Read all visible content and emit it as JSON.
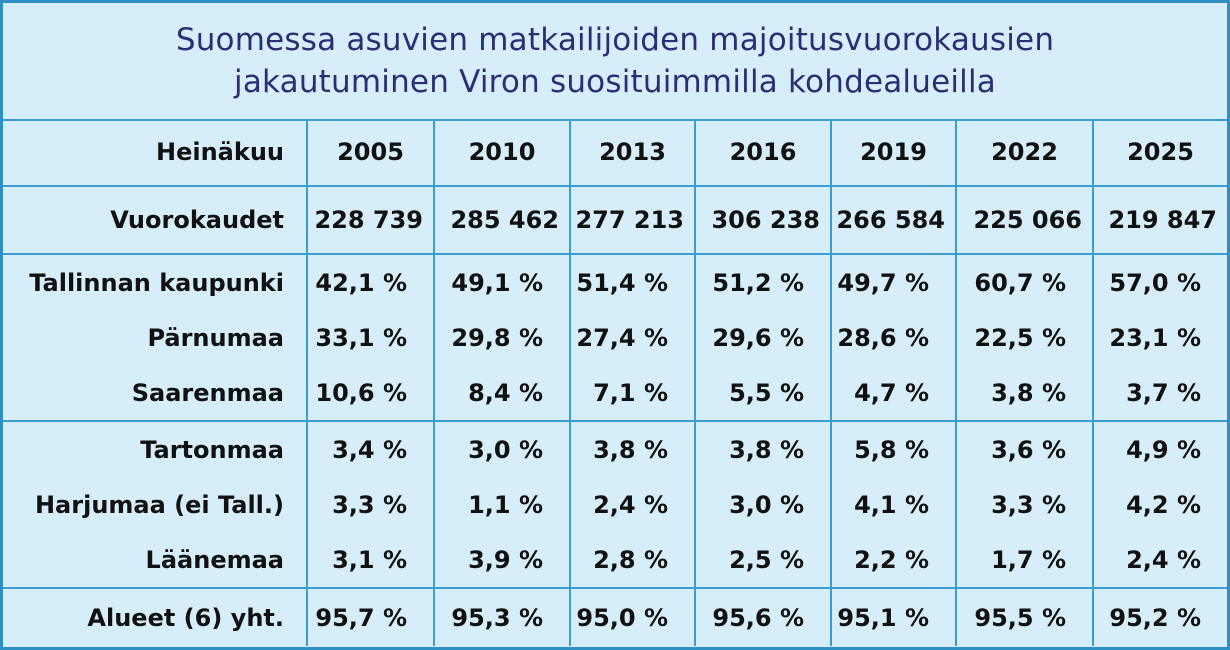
{
  "title_line1": "Suomessa asuvien matkailijoiden majoitusvuorokausien",
  "title_line2": "jakautuminen Viron suosituimmilla kohdealueilla",
  "colors": {
    "border": "#3a9cd0",
    "background": "#d6eef9",
    "title": "#2a2f74"
  },
  "chart_data": {
    "type": "table",
    "header": {
      "label": "Heinäkuu",
      "years": [
        "2005",
        "2010",
        "2013",
        "2016",
        "2019",
        "2022",
        "2025"
      ]
    },
    "nights": {
      "label": "Vuorokaudet",
      "values": [
        "228 739",
        "285 462",
        "277 213",
        "306 238",
        "266 584",
        "225 066",
        "219 847"
      ]
    },
    "regions": [
      {
        "label": "Tallinnan kaupunki",
        "values": [
          "42,1 %",
          "49,1 %",
          "51,4 %",
          "51,2 %",
          "49,7 %",
          "60,7 %",
          "57,0 %"
        ]
      },
      {
        "label": "Pärnumaa",
        "values": [
          "33,1 %",
          "29,8 %",
          "27,4 %",
          "29,6 %",
          "28,6 %",
          "22,5 %",
          "23,1 %"
        ]
      },
      {
        "label": "Saarenmaa",
        "values": [
          "10,6 %",
          "8,4 %",
          "7,1 %",
          "5,5 %",
          "4,7 %",
          "3,8 %",
          "3,7 %"
        ]
      },
      {
        "label": "Tartonmaa",
        "values": [
          "3,4 %",
          "3,0 %",
          "3,8 %",
          "3,8 %",
          "5,8 %",
          "3,6 %",
          "4,9 %"
        ]
      },
      {
        "label": "Harjumaa (ei Tall.)",
        "values": [
          "3,3 %",
          "1,1 %",
          "2,4 %",
          "3,0 %",
          "4,1 %",
          "3,3 %",
          "4,2 %"
        ]
      },
      {
        "label": "Läänemaa",
        "values": [
          "3,1 %",
          "3,9 %",
          "2,8 %",
          "2,5 %",
          "2,2 %",
          "1,7 %",
          "2,4 %"
        ]
      }
    ],
    "total": {
      "label": "Alueet (6) yht.",
      "values": [
        "95,7 %",
        "95,3 %",
        "95,0 %",
        "95,6 %",
        "95,1 %",
        "95,5 %",
        "95,2 %"
      ]
    }
  }
}
